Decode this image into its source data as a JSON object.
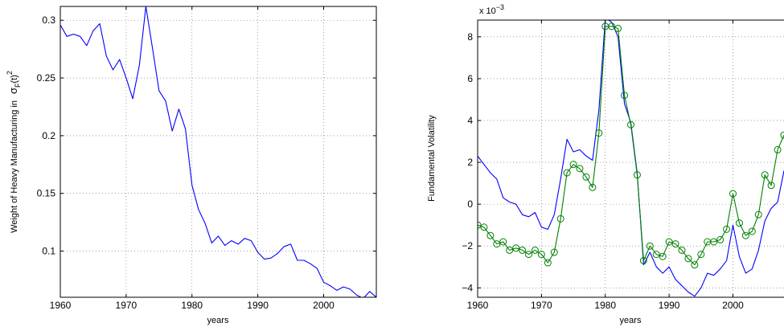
{
  "chart_data": [
    {
      "type": "line",
      "title": "",
      "xlabel": "years",
      "ylabel": "Weight of Heavy Manufacturing in",
      "ylabel_math": {
        "base": "σ",
        "sub": "F",
        "mid": "(t)",
        "sup": "2"
      },
      "xlim": [
        1960,
        2008
      ],
      "ylim": [
        0.06,
        0.312
      ],
      "xticks": [
        1960,
        1970,
        1980,
        1990,
        2000
      ],
      "yticks": [
        0.1,
        0.15,
        0.2,
        0.25,
        0.3
      ],
      "ytick_labels": [
        "0.1",
        "0.15",
        "0.2",
        "0.25",
        "0.3"
      ],
      "grid": true,
      "series": [
        {
          "color": "#0000ff",
          "marker": "none",
          "x": [
            1960,
            1961,
            1962,
            1963,
            1964,
            1965,
            1966,
            1967,
            1968,
            1969,
            1970,
            1971,
            1972,
            1973,
            1974,
            1975,
            1976,
            1977,
            1978,
            1979,
            1980,
            1981,
            1982,
            1983,
            1984,
            1985,
            1986,
            1987,
            1988,
            1989,
            1990,
            1991,
            1992,
            1993,
            1994,
            1995,
            1996,
            1997,
            1998,
            1999,
            2000,
            2001,
            2002,
            2003,
            2004,
            2005,
            2006,
            2007,
            2008
          ],
          "values": [
            0.296,
            0.286,
            0.288,
            0.286,
            0.278,
            0.291,
            0.297,
            0.269,
            0.257,
            0.266,
            0.25,
            0.232,
            0.261,
            0.312,
            0.276,
            0.239,
            0.23,
            0.204,
            0.223,
            0.206,
            0.157,
            0.136,
            0.124,
            0.107,
            0.113,
            0.105,
            0.109,
            0.106,
            0.111,
            0.109,
            0.099,
            0.093,
            0.094,
            0.098,
            0.104,
            0.106,
            0.092,
            0.092,
            0.089,
            0.085,
            0.073,
            0.07,
            0.066,
            0.069,
            0.067,
            0.062,
            0.059,
            0.065,
            0.06
          ]
        }
      ]
    },
    {
      "type": "line",
      "title": "",
      "xlabel": "years",
      "ylabel": "Fundamental Volatility",
      "multiplier": {
        "base": "x 10",
        "exp": "−3"
      },
      "xlim": [
        1960,
        2008
      ],
      "ylim": [
        -4.45,
        8.8
      ],
      "xticks": [
        1960,
        1970,
        1980,
        1990,
        2000
      ],
      "yticks": [
        -4,
        -2,
        0,
        2,
        4,
        6,
        8
      ],
      "ytick_labels": [
        "−4",
        "−2",
        "0",
        "2",
        "4",
        "6",
        "8"
      ],
      "grid": true,
      "series": [
        {
          "color": "#0000ff",
          "marker": "none",
          "x": [
            1960,
            1961,
            1962,
            1963,
            1964,
            1965,
            1966,
            1967,
            1968,
            1969,
            1970,
            1971,
            1972,
            1973,
            1974,
            1975,
            1976,
            1977,
            1978,
            1979,
            1980,
            1981,
            1982,
            1983,
            1984,
            1985,
            1986,
            1987,
            1988,
            1989,
            1990,
            1991,
            1992,
            1993,
            1994,
            1995,
            1996,
            1997,
            1998,
            1999,
            2000,
            2001,
            2002,
            2003,
            2004,
            2005,
            2006,
            2007,
            2008
          ],
          "values": [
            2.3,
            1.9,
            1.5,
            1.2,
            0.3,
            0.1,
            0.0,
            -0.5,
            -0.6,
            -0.4,
            -1.1,
            -1.2,
            -0.5,
            1.2,
            3.1,
            2.5,
            2.6,
            2.3,
            2.1,
            4.5,
            8.9,
            8.7,
            8.0,
            4.8,
            3.9,
            1.5,
            -2.9,
            -2.3,
            -3.0,
            -3.3,
            -3.0,
            -3.6,
            -3.9,
            -4.2,
            -4.4,
            -4.0,
            -3.3,
            -3.4,
            -3.1,
            -2.7,
            -1.0,
            -2.5,
            -3.3,
            -3.1,
            -2.2,
            -0.8,
            -0.2,
            0.1,
            1.6
          ]
        },
        {
          "color": "#008000",
          "marker": "circle",
          "x": [
            1960,
            1961,
            1962,
            1963,
            1964,
            1965,
            1966,
            1967,
            1968,
            1969,
            1970,
            1971,
            1972,
            1973,
            1974,
            1975,
            1976,
            1977,
            1978,
            1979,
            1980,
            1981,
            1982,
            1983,
            1984,
            1985,
            1986,
            1987,
            1988,
            1989,
            1990,
            1991,
            1992,
            1993,
            1994,
            1995,
            1996,
            1997,
            1998,
            1999,
            2000,
            2001,
            2002,
            2003,
            2004,
            2005,
            2006,
            2007,
            2008
          ],
          "values": [
            -1.0,
            -1.1,
            -1.5,
            -1.9,
            -1.8,
            -2.2,
            -2.1,
            -2.2,
            -2.4,
            -2.2,
            -2.4,
            -2.8,
            -2.3,
            -0.7,
            1.5,
            1.9,
            1.7,
            1.3,
            0.8,
            3.4,
            8.5,
            8.5,
            8.4,
            5.2,
            3.8,
            1.4,
            -2.7,
            -2.0,
            -2.4,
            -2.5,
            -1.8,
            -1.9,
            -2.2,
            -2.6,
            -2.9,
            -2.4,
            -1.8,
            -1.8,
            -1.7,
            -1.2,
            0.5,
            -0.9,
            -1.5,
            -1.3,
            -0.5,
            1.4,
            0.9,
            2.6,
            3.3
          ]
        }
      ]
    }
  ]
}
